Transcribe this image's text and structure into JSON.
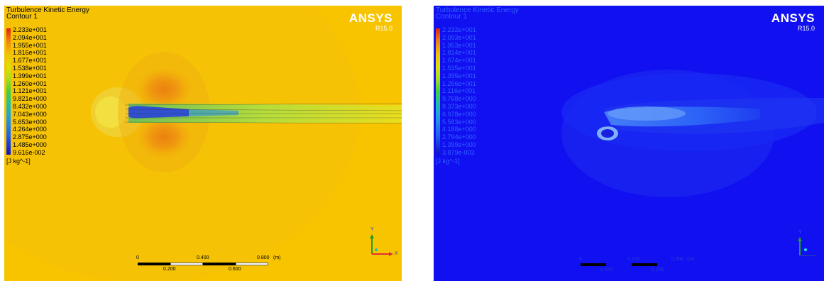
{
  "left": {
    "title": "Turbulence Kinetic Energy",
    "subtitle": "Contour 1",
    "brand": "ANSYS",
    "version": "R15.0",
    "legend": [
      "2.233e+001",
      "2.094e+001",
      "1.955e+001",
      "1.816e+001",
      "1.677e+001",
      "1.538e+001",
      "1.399e+001",
      "1.260e+001",
      "1.121e+001",
      "9.821e+000",
      "8.432e+000",
      "7.043e+000",
      "5.653e+000",
      "4.264e+000",
      "2.875e+000",
      "1.485e+000",
      "9.616e-002"
    ],
    "units": "[J kg^-1]",
    "scale_top": [
      "0",
      "0.400",
      "0.800",
      "(m)"
    ],
    "scale_bottom": [
      "0.200",
      "0.600"
    ],
    "axis_y": "Y",
    "axis_x": "X",
    "colors": {
      "background": "#f8c400",
      "text": "#1a1a1a"
    }
  },
  "right": {
    "title": "Turbulence Kinetic Energy",
    "subtitle": "Contour 1",
    "brand": "ANSYS",
    "version": "R15.0",
    "legend": [
      "2.232e+001",
      "2.093e+001",
      "1.953e+001",
      "1.814e+001",
      "1.674e+001",
      "1.535e+001",
      "1.395e+001",
      "1.256e+001",
      "1.116e+001",
      "9.768e+000",
      "8.373e+000",
      "6.978e+000",
      "5.583e+000",
      "4.188e+000",
      "2.794e+000",
      "1.399e+000",
      "3.879e-003"
    ],
    "units": "[J kg^-1]",
    "scale_top": [
      "0",
      "0.150",
      "0.300",
      "(m)"
    ],
    "scale_bottom": [
      "0.075",
      "0.225"
    ],
    "axis_y": "Y",
    "colors": {
      "background": "#1010f0",
      "text": "#3060ff"
    }
  }
}
